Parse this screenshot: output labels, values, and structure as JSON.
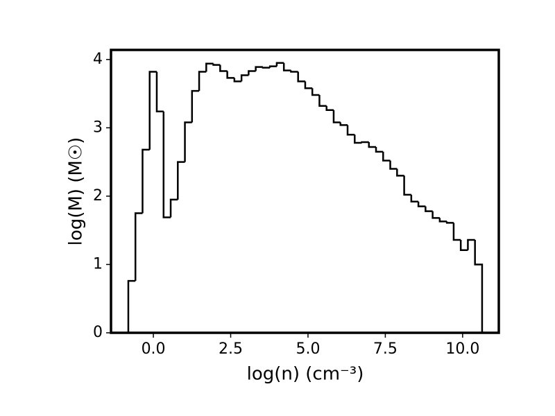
{
  "chart_data": {
    "type": "histogram",
    "x_label": "log(n) (cm⁻³)",
    "y_label": "log(M) (M☉)",
    "color": "#000000",
    "bins": [
      -0.81,
      -0.58,
      -0.35,
      -0.12,
      0.11,
      0.33,
      0.56,
      0.79,
      1.02,
      1.25,
      1.48,
      1.71,
      1.94,
      2.16,
      2.39,
      2.62,
      2.85,
      3.08,
      3.31,
      3.54,
      3.77,
      3.99,
      4.22,
      4.45,
      4.68,
      4.91,
      5.14,
      5.37,
      5.6,
      5.83,
      6.05,
      6.28,
      6.51,
      6.74,
      6.97,
      7.2,
      7.43,
      7.66,
      7.88,
      8.11,
      8.34,
      8.57,
      8.8,
      9.03,
      9.26,
      9.49,
      9.71,
      9.94,
      10.17,
      10.4,
      10.63
    ],
    "counts": [
      0.76,
      1.75,
      2.68,
      3.82,
      3.24,
      1.69,
      1.95,
      2.5,
      3.08,
      3.54,
      3.82,
      3.94,
      3.92,
      3.83,
      3.73,
      3.68,
      3.77,
      3.83,
      3.89,
      3.88,
      3.9,
      3.95,
      3.84,
      3.82,
      3.68,
      3.58,
      3.48,
      3.32,
      3.26,
      3.08,
      3.04,
      2.9,
      2.78,
      2.79,
      2.72,
      2.65,
      2.52,
      2.4,
      2.3,
      2.02,
      1.92,
      1.85,
      1.78,
      1.68,
      1.63,
      1.61,
      1.36,
      1.21,
      1.36,
      1.0
    ],
    "xlim": [
      -1.37,
      11.17
    ],
    "ylim": [
      0,
      4.14
    ],
    "xticks": [
      {
        "value": 0,
        "label": "0.0"
      },
      2.5,
      {
        "value": 5,
        "label": "5.0"
      },
      7.5,
      {
        "value": 10,
        "label": "10.0"
      }
    ],
    "yticks": [
      0,
      1,
      2,
      3,
      4
    ]
  }
}
